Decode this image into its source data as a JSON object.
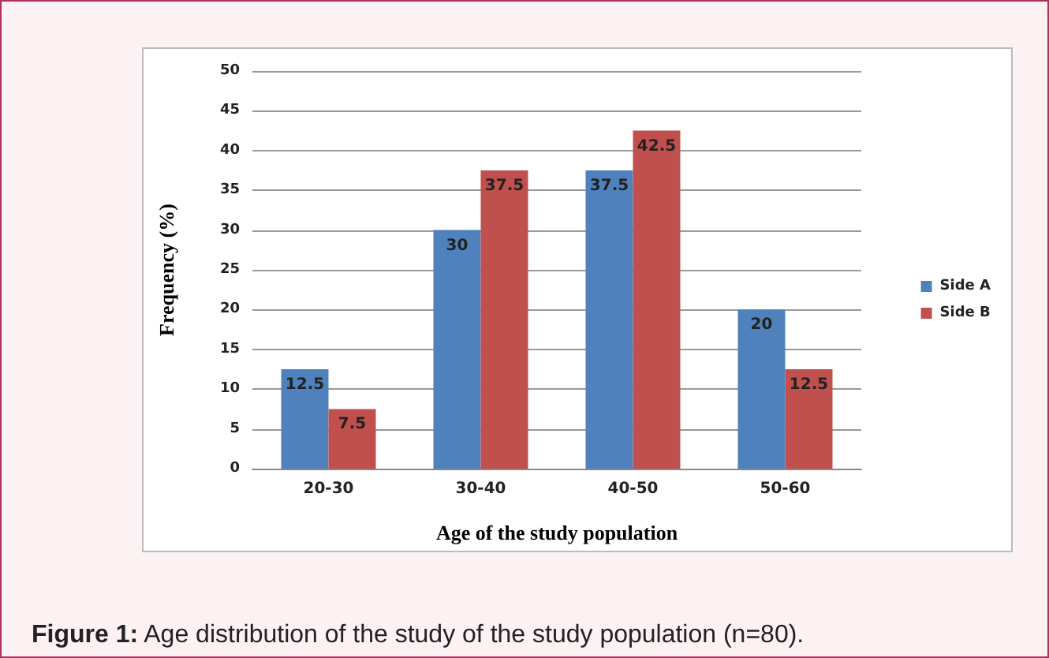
{
  "chart_data": {
    "type": "bar",
    "xlabel": "Age of the study population",
    "ylabel": "Frequency (%)",
    "categories": [
      "20-30",
      "30-40",
      "40-50",
      "50-60"
    ],
    "series": [
      {
        "name": "Side A",
        "color": "#4f81bd",
        "values": [
          12.5,
          30,
          37.5,
          20
        ]
      },
      {
        "name": "Side B",
        "color": "#c0504d",
        "values": [
          7.5,
          37.5,
          42.5,
          12.5
        ]
      }
    ],
    "ylim": [
      0,
      50
    ],
    "yticks": [
      0,
      5,
      10,
      15,
      20,
      25,
      30,
      35,
      40,
      45,
      50
    ],
    "grid": "y",
    "legend": "right",
    "data_labels": true,
    "annotations": [
      "Figure 1: Age distribution of the study of the study population (n=80)."
    ]
  }
}
